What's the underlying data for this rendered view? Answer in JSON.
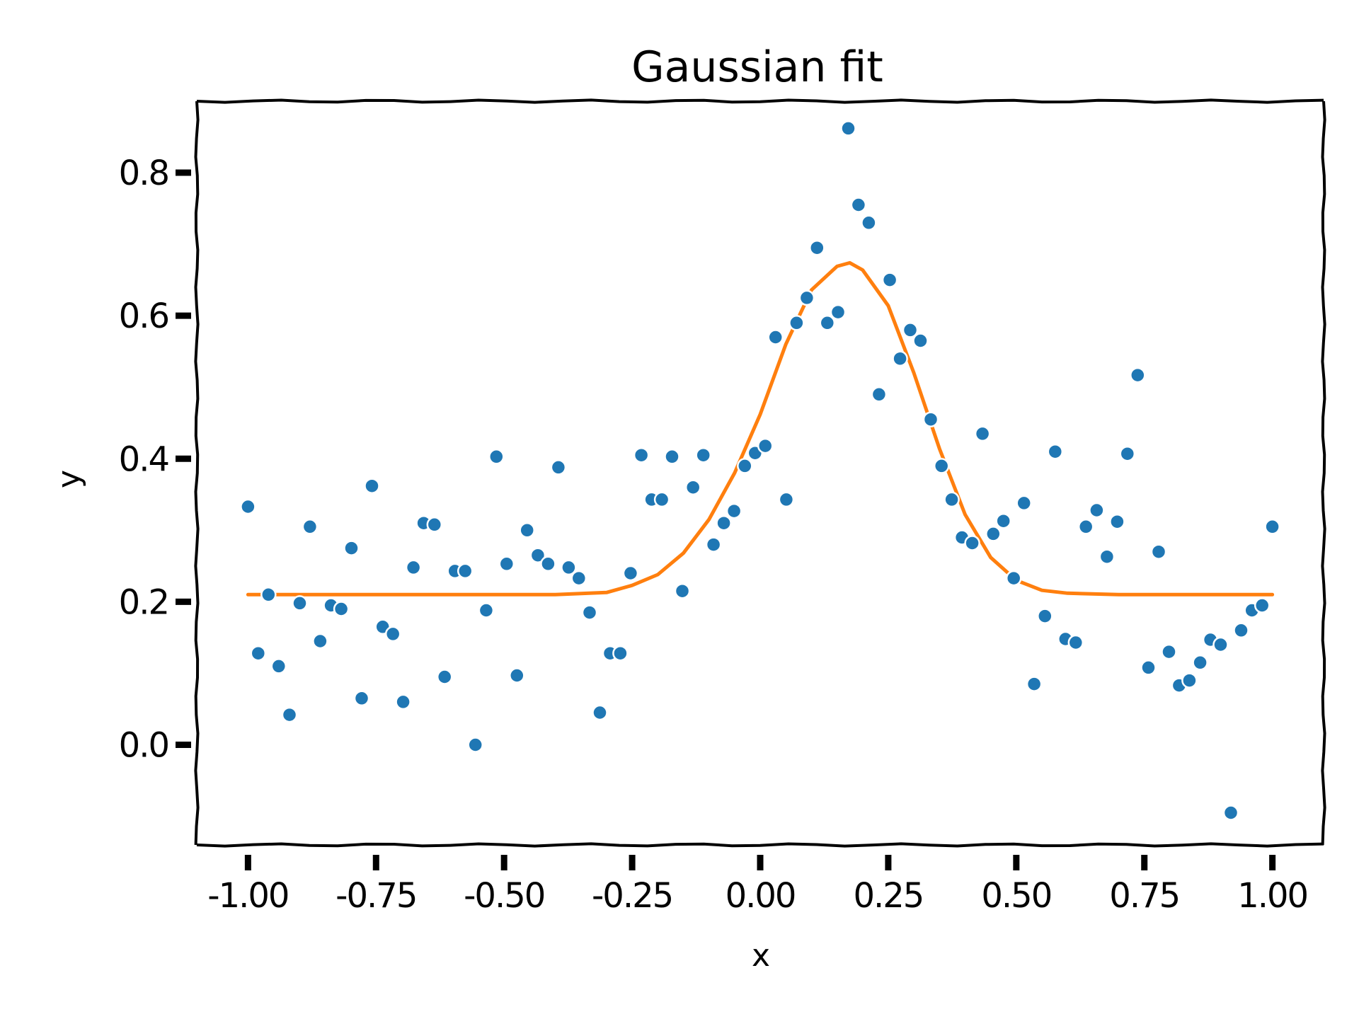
{
  "chart_data": {
    "type": "scatter",
    "title": "Gaussian fit",
    "xlabel": "x",
    "ylabel": "y",
    "xlim": [
      -1.1,
      1.1
    ],
    "ylim": [
      -0.14,
      0.9
    ],
    "xticks": [
      -1.0,
      -0.75,
      -0.5,
      -0.25,
      0.0,
      0.25,
      0.5,
      0.75,
      1.0
    ],
    "xtick_labels": [
      "-1.00",
      "-0.75",
      "-0.50",
      "-0.25",
      "0.00",
      "0.25",
      "0.50",
      "0.75",
      "1.00"
    ],
    "yticks": [
      0.0,
      0.2,
      0.4,
      0.6,
      0.8
    ],
    "ytick_labels": [
      "0.0",
      "0.2",
      "0.4",
      "0.6",
      "0.8"
    ],
    "grid": false,
    "colors": {
      "scatter": "#1f77b4",
      "fit": "#ff7f0e"
    },
    "series": [
      {
        "kind": "scatter",
        "points": [
          [
            -1.0,
            0.333
          ],
          [
            -0.98,
            0.128
          ],
          [
            -0.96,
            0.21
          ],
          [
            -0.94,
            0.11
          ],
          [
            -0.919,
            0.042
          ],
          [
            -0.899,
            0.198
          ],
          [
            -0.879,
            0.305
          ],
          [
            -0.859,
            0.145
          ],
          [
            -0.838,
            0.195
          ],
          [
            -0.818,
            0.19
          ],
          [
            -0.798,
            0.275
          ],
          [
            -0.778,
            0.065
          ],
          [
            -0.758,
            0.362
          ],
          [
            -0.737,
            0.165
          ],
          [
            -0.717,
            0.155
          ],
          [
            -0.697,
            0.06
          ],
          [
            -0.677,
            0.248
          ],
          [
            -0.657,
            0.31
          ],
          [
            -0.636,
            0.308
          ],
          [
            -0.616,
            0.095
          ],
          [
            -0.596,
            0.243
          ],
          [
            -0.576,
            0.243
          ],
          [
            -0.556,
            0.0
          ],
          [
            -0.535,
            0.188
          ],
          [
            -0.515,
            0.403
          ],
          [
            -0.495,
            0.253
          ],
          [
            -0.475,
            0.097
          ],
          [
            -0.455,
            0.3
          ],
          [
            -0.434,
            0.265
          ],
          [
            -0.414,
            0.253
          ],
          [
            -0.394,
            0.388
          ],
          [
            -0.374,
            0.248
          ],
          [
            -0.354,
            0.233
          ],
          [
            -0.333,
            0.185
          ],
          [
            -0.313,
            0.045
          ],
          [
            -0.293,
            0.128
          ],
          [
            -0.273,
            0.128
          ],
          [
            -0.253,
            0.24
          ],
          [
            -0.232,
            0.405
          ],
          [
            -0.212,
            0.343
          ],
          [
            -0.192,
            0.343
          ],
          [
            -0.172,
            0.403
          ],
          [
            -0.152,
            0.215
          ],
          [
            -0.131,
            0.36
          ],
          [
            -0.111,
            0.405
          ],
          [
            -0.091,
            0.28
          ],
          [
            -0.071,
            0.31
          ],
          [
            -0.051,
            0.327
          ],
          [
            -0.03,
            0.39
          ],
          [
            -0.01,
            0.408
          ],
          [
            0.01,
            0.418
          ],
          [
            0.03,
            0.57
          ],
          [
            0.051,
            0.343
          ],
          [
            0.071,
            0.59
          ],
          [
            0.091,
            0.625
          ],
          [
            0.111,
            0.695
          ],
          [
            0.131,
            0.59
          ],
          [
            0.152,
            0.605
          ],
          [
            0.172,
            0.862
          ],
          [
            0.192,
            0.755
          ],
          [
            0.212,
            0.73
          ],
          [
            0.232,
            0.49
          ],
          [
            0.253,
            0.65
          ],
          [
            0.273,
            0.54
          ],
          [
            0.293,
            0.58
          ],
          [
            0.313,
            0.565
          ],
          [
            0.333,
            0.455
          ],
          [
            0.354,
            0.39
          ],
          [
            0.374,
            0.343
          ],
          [
            0.394,
            0.29
          ],
          [
            0.414,
            0.282
          ],
          [
            0.434,
            0.435
          ],
          [
            0.455,
            0.295
          ],
          [
            0.475,
            0.313
          ],
          [
            0.495,
            0.233
          ],
          [
            0.515,
            0.338
          ],
          [
            0.535,
            0.085
          ],
          [
            0.556,
            0.18
          ],
          [
            0.576,
            0.41
          ],
          [
            0.596,
            0.148
          ],
          [
            0.616,
            0.143
          ],
          [
            0.636,
            0.305
          ],
          [
            0.657,
            0.328
          ],
          [
            0.677,
            0.263
          ],
          [
            0.697,
            0.312
          ],
          [
            0.717,
            0.407
          ],
          [
            0.737,
            0.517
          ],
          [
            0.758,
            0.108
          ],
          [
            0.778,
            0.27
          ],
          [
            0.798,
            0.13
          ],
          [
            0.818,
            0.083
          ],
          [
            0.838,
            0.09
          ],
          [
            0.859,
            0.115
          ],
          [
            0.879,
            0.147
          ],
          [
            0.899,
            0.14
          ],
          [
            0.919,
            -0.095
          ],
          [
            0.939,
            0.16
          ],
          [
            0.96,
            0.188
          ],
          [
            0.98,
            0.195
          ],
          [
            1.0,
            0.305
          ]
        ]
      },
      {
        "kind": "line",
        "x": [
          -1.0,
          -0.9,
          -0.8,
          -0.7,
          -0.6,
          -0.5,
          -0.4,
          -0.3,
          -0.25,
          -0.2,
          -0.15,
          -0.1,
          -0.05,
          0.0,
          0.05,
          0.1,
          0.15,
          0.175,
          0.2,
          0.25,
          0.3,
          0.35,
          0.4,
          0.45,
          0.5,
          0.55,
          0.6,
          0.7,
          0.8,
          0.9,
          1.0
        ],
        "y": [
          0.21,
          0.21,
          0.21,
          0.21,
          0.21,
          0.21,
          0.21,
          0.213,
          0.223,
          0.238,
          0.268,
          0.315,
          0.38,
          0.462,
          0.56,
          0.636,
          0.669,
          0.674,
          0.664,
          0.614,
          0.52,
          0.414,
          0.322,
          0.262,
          0.23,
          0.216,
          0.212,
          0.21,
          0.21,
          0.21,
          0.21
        ]
      }
    ]
  }
}
